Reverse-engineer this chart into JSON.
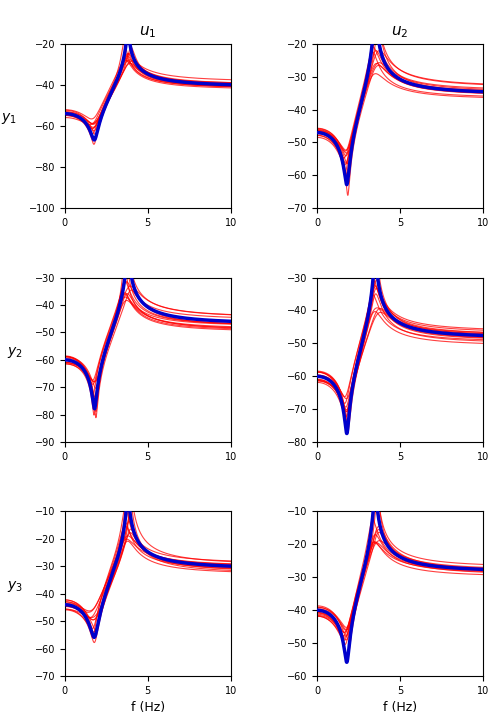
{
  "titles_col": [
    "u_1",
    "u_2"
  ],
  "ylabels_row": [
    "y_1",
    "y_2",
    "y_3"
  ],
  "xlabel": "f (Hz)",
  "xlim": [
    0,
    10
  ],
  "ylims": [
    [
      [
        -100,
        -20
      ],
      [
        -70,
        -20
      ]
    ],
    [
      [
        -90,
        -30
      ],
      [
        -80,
        -30
      ]
    ],
    [
      [
        -70,
        -10
      ],
      [
        -60,
        -10
      ]
    ]
  ],
  "yticks": [
    [
      [
        -100,
        -80,
        -60,
        -40,
        -20
      ],
      [
        -70,
        -60,
        -50,
        -40,
        -30,
        -20
      ]
    ],
    [
      [
        -90,
        -80,
        -70,
        -60,
        -50,
        -40,
        -30
      ],
      [
        -80,
        -70,
        -60,
        -50,
        -40,
        -30
      ]
    ],
    [
      [
        -70,
        -60,
        -50,
        -40,
        -30,
        -20,
        -10
      ],
      [
        -60,
        -50,
        -40,
        -30,
        -20,
        -10
      ]
    ]
  ],
  "n_red_curves": 12,
  "blue_lw": 2.5,
  "red_lw": 0.8,
  "blue_color": "#0000CC",
  "red_color": "#FF0000",
  "bg_color": "#FFFFFF",
  "blue_params": {
    "00": [
      3.8,
      0.018,
      1.8,
      0.09,
      -54
    ],
    "01": [
      3.5,
      0.022,
      1.8,
      0.06,
      -47
    ],
    "10": [
      3.8,
      0.018,
      1.8,
      0.05,
      -60
    ],
    "11": [
      3.5,
      0.022,
      1.8,
      0.05,
      -60
    ],
    "20": [
      3.8,
      0.018,
      1.8,
      0.1,
      -44
    ],
    "21": [
      3.5,
      0.022,
      1.8,
      0.06,
      -40
    ]
  }
}
